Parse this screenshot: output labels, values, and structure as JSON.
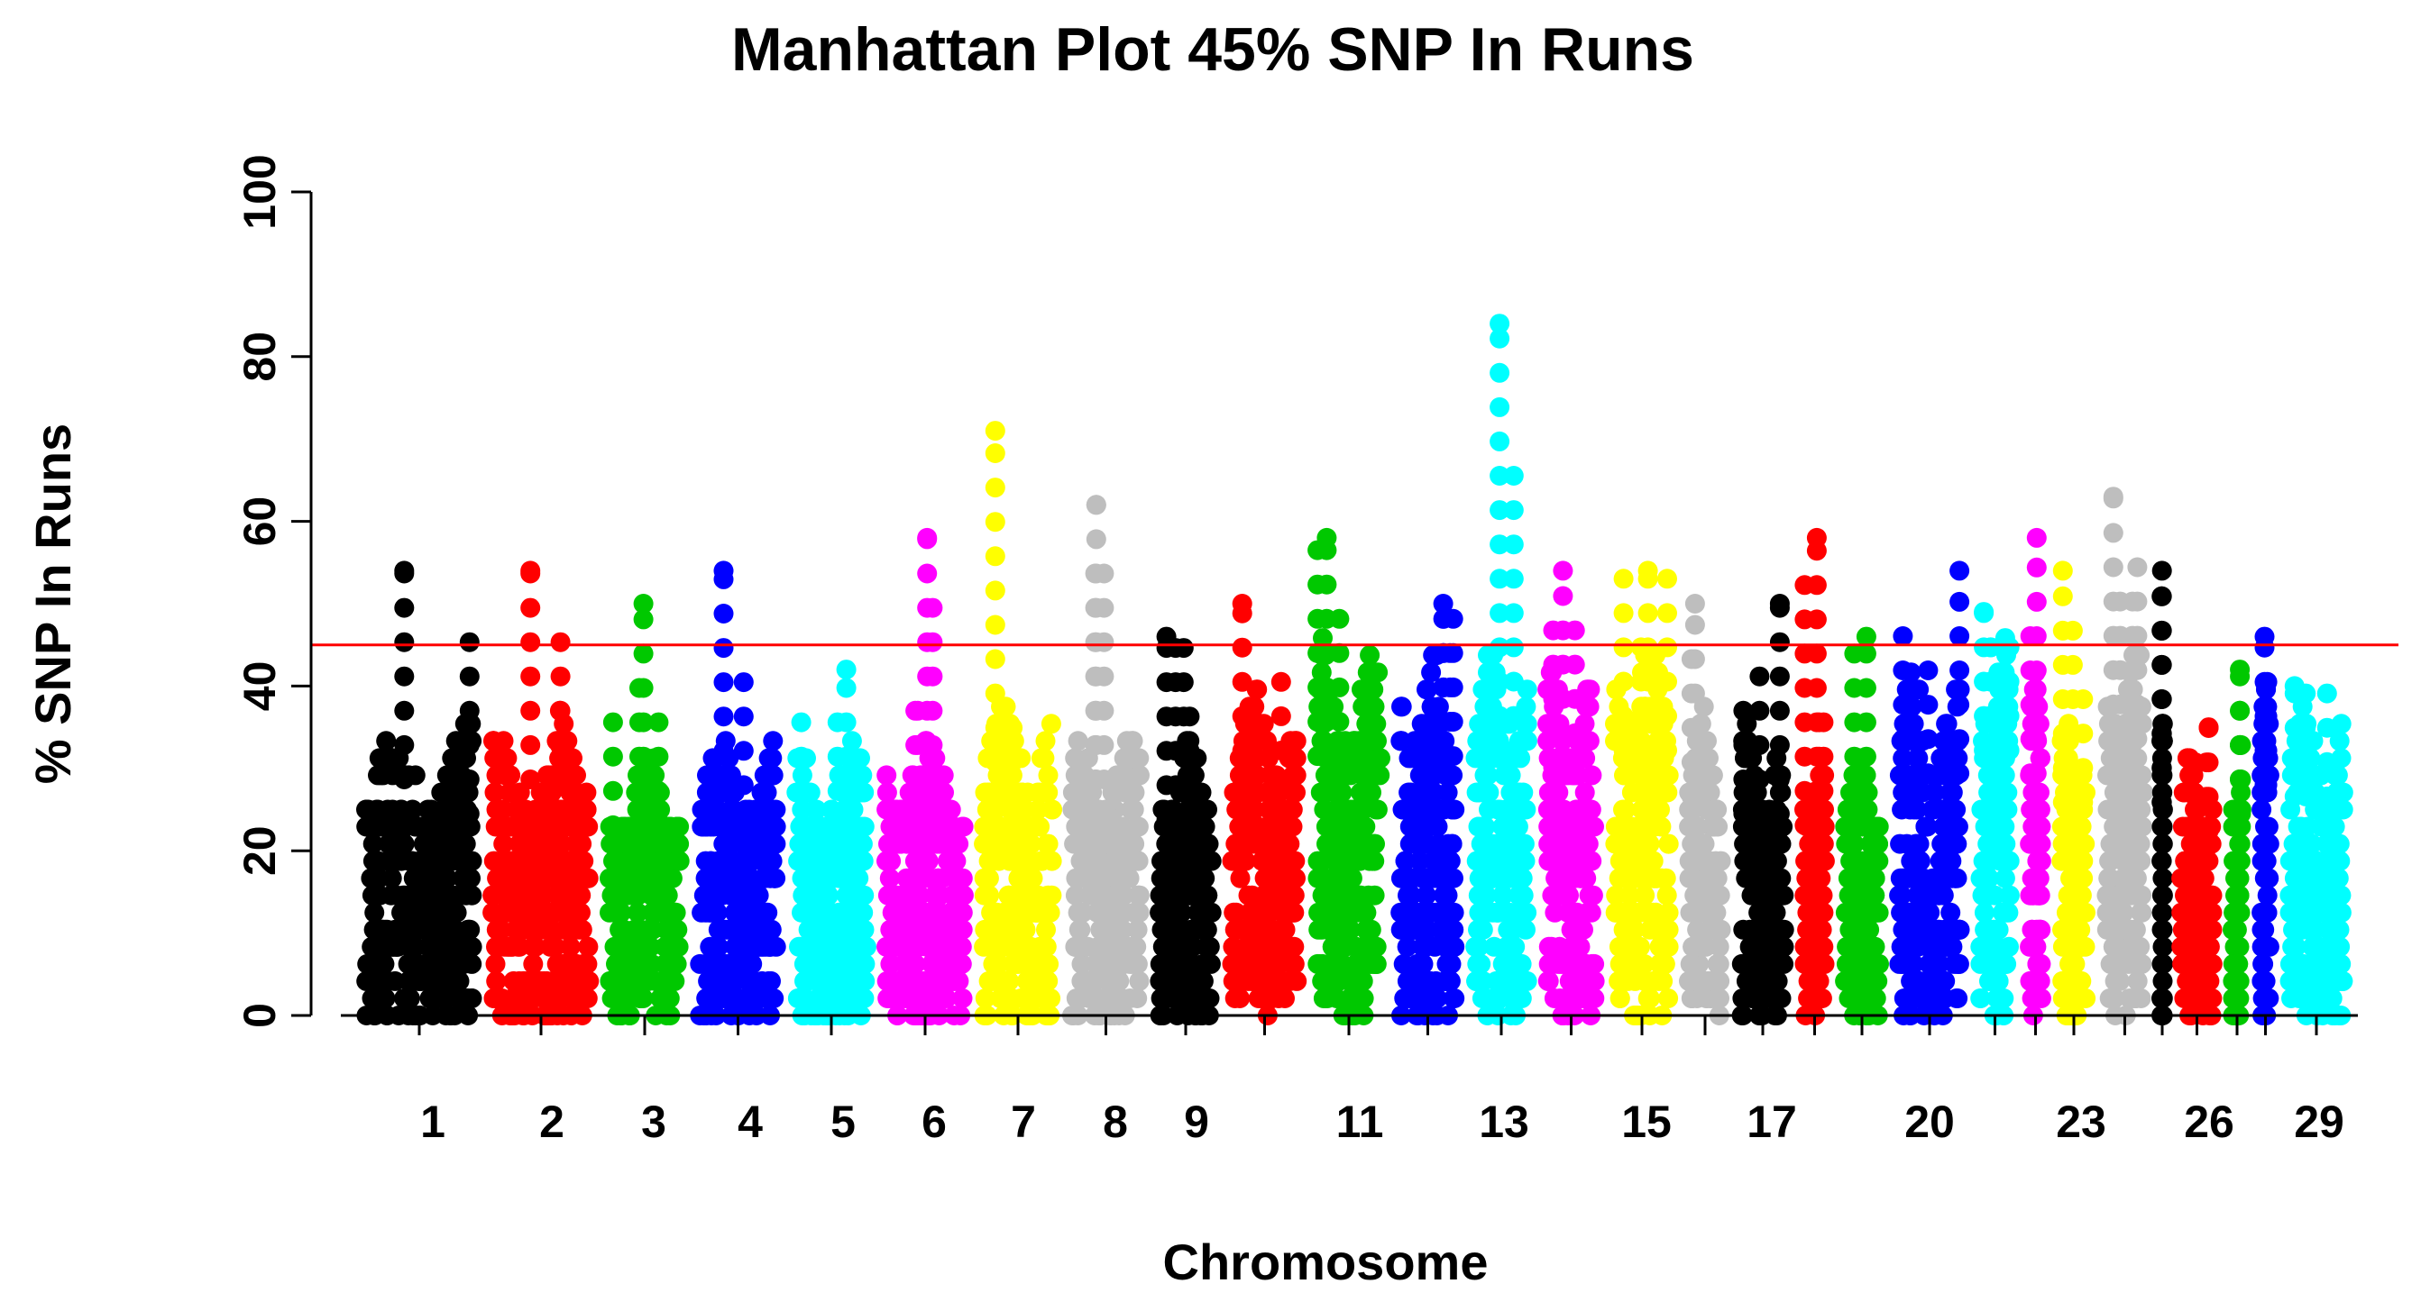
{
  "chart_data": {
    "type": "scatter",
    "title": "Manhattan Plot 45% SNP In Runs",
    "xlabel": "Chromosome",
    "ylabel": "% SNP In Runs",
    "ylim": [
      0,
      100
    ],
    "yticks": [
      0,
      20,
      40,
      60,
      80,
      100
    ],
    "threshold": 45,
    "threshold_color": "#ff0000",
    "grid": false,
    "legend": "none",
    "palette": [
      "#000000",
      "#ff0000",
      "#00c800",
      "#0000ff",
      "#00ffff",
      "#ff00ff",
      "#ffff00",
      "#bebebe"
    ],
    "x_tick_labels": [
      "1",
      "2",
      "3",
      "4",
      "5",
      "6",
      "7",
      "8",
      "9",
      "11",
      "13",
      "15",
      "17",
      "20",
      "23",
      "26",
      "29"
    ],
    "chromosomes": [
      {
        "chr": 1,
        "max": 54,
        "bulk": 35
      },
      {
        "chr": 2,
        "max": 54,
        "bulk": 35
      },
      {
        "chr": 3,
        "max": 50,
        "bulk": 33
      },
      {
        "chr": 4,
        "max": 54,
        "bulk": 34
      },
      {
        "chr": 5,
        "max": 42,
        "bulk": 33
      },
      {
        "chr": 6,
        "max": 58,
        "bulk": 35
      },
      {
        "chr": 7,
        "max": 71,
        "bulk": 38
      },
      {
        "chr": 8,
        "max": 62,
        "bulk": 35
      },
      {
        "chr": 9,
        "max": 46,
        "bulk": 34
      },
      {
        "chr": 10,
        "max": 50,
        "bulk": 40
      },
      {
        "chr": 11,
        "max": 58,
        "bulk": 45
      },
      {
        "chr": 12,
        "max": 50,
        "bulk": 45
      },
      {
        "chr": 13,
        "max": 84,
        "bulk": 46
      },
      {
        "chr": 14,
        "max": 54,
        "bulk": 43
      },
      {
        "chr": 15,
        "max": 54,
        "bulk": 46
      },
      {
        "chr": 16,
        "max": 50,
        "bulk": 38
      },
      {
        "chr": 17,
        "max": 50,
        "bulk": 35
      },
      {
        "chr": 18,
        "max": 58,
        "bulk": 33
      },
      {
        "chr": 19,
        "max": 46,
        "bulk": 33
      },
      {
        "chr": 20,
        "max": 54,
        "bulk": 42
      },
      {
        "chr": 21,
        "max": 49,
        "bulk": 46
      },
      {
        "chr": 22,
        "max": 58,
        "bulk": 42
      },
      {
        "chr": 23,
        "max": 54,
        "bulk": 37
      },
      {
        "chr": 24,
        "max": 63,
        "bulk": 48
      },
      {
        "chr": 25,
        "max": 54,
        "bulk": 37
      },
      {
        "chr": 26,
        "max": 35,
        "bulk": 32
      },
      {
        "chr": 27,
        "max": 42,
        "bulk": 35
      },
      {
        "chr": 28,
        "max": 46,
        "bulk": 40
      },
      {
        "chr": 29,
        "max": 40,
        "bulk": 38
      }
    ]
  }
}
